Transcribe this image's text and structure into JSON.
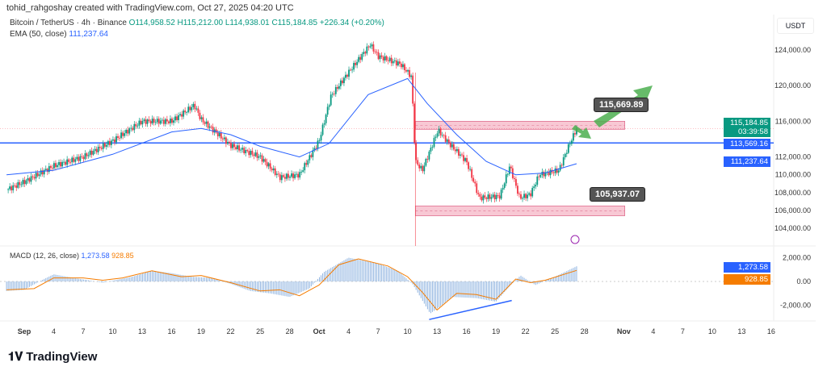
{
  "credit": "tohid_rahgoshay created with TradingView.com, Oct 27, 2025 04:20 UTC",
  "symbol": {
    "name": "Bitcoin / TetherUS · 4h · Binance",
    "o": "O114,958.52",
    "h": "H115,212.00",
    "l": "L114,938.01",
    "c": "C115,184.85",
    "chg": "+226.34 (+0.20%)"
  },
  "ema_legend": {
    "label": "EMA (50, close)",
    "value": "111,237.64"
  },
  "macd_legend": {
    "label": "MACD (12, 26, close)",
    "macd": "1,273.58",
    "signal": "928.85"
  },
  "currency": "USDT",
  "tags": {
    "price": "115,184.85",
    "countdown": "03:39:58",
    "hline": "113,569.16",
    "ema": "111,237.64",
    "macd": "1,273.58",
    "signal": "928.85"
  },
  "annotations": {
    "resistance": "115,669.89",
    "support": "105,937.07"
  },
  "logo": "TradingView",
  "colors": {
    "up": "#089981",
    "down": "#f23645",
    "ema": "#2962ff",
    "signal": "#f57c00",
    "hist": "#90b4e0",
    "zone": "#f8c8d4"
  },
  "chart_data": {
    "type": "candlestick",
    "title": "Bitcoin / TetherUS · 4h · Binance",
    "ylim": [
      103000,
      126000
    ],
    "yticks": [
      104000,
      106000,
      108000,
      110000,
      112000,
      116000,
      120000,
      124000
    ],
    "ytick_labels": [
      "104,000.00",
      "106,000.00",
      "108,000.00",
      "110,000.00",
      "112,000.00",
      "116,000.00",
      "120,000.00",
      "124,000.00"
    ],
    "xticks": [
      {
        "day": 0,
        "label": "Sep"
      },
      {
        "day": 3,
        "label": "4"
      },
      {
        "day": 6,
        "label": "7"
      },
      {
        "day": 9,
        "label": "10"
      },
      {
        "day": 12,
        "label": "13"
      },
      {
        "day": 15,
        "label": "16"
      },
      {
        "day": 18,
        "label": "19"
      },
      {
        "day": 21,
        "label": "22"
      },
      {
        "day": 24,
        "label": "25"
      },
      {
        "day": 27,
        "label": "28"
      },
      {
        "day": 30,
        "label": "Oct"
      },
      {
        "day": 33,
        "label": "4"
      },
      {
        "day": 36,
        "label": "7"
      },
      {
        "day": 39,
        "label": "10"
      },
      {
        "day": 42,
        "label": "13"
      },
      {
        "day": 45,
        "label": "16"
      },
      {
        "day": 48,
        "label": "19"
      },
      {
        "day": 51,
        "label": "22"
      },
      {
        "day": 54,
        "label": "25"
      },
      {
        "day": 57,
        "label": "28"
      },
      {
        "day": 61,
        "label": "Nov"
      },
      {
        "day": 64,
        "label": "4"
      },
      {
        "day": 67,
        "label": "7"
      },
      {
        "day": 70,
        "label": "10"
      },
      {
        "day": 73,
        "label": "13"
      },
      {
        "day": 76,
        "label": "16"
      }
    ],
    "price_path": [
      [
        -1.8,
        108300
      ],
      [
        0,
        109200
      ],
      [
        3,
        111000
      ],
      [
        6,
        112000
      ],
      [
        9,
        113800
      ],
      [
        12,
        116000
      ],
      [
        15,
        116000
      ],
      [
        17.3,
        117800
      ],
      [
        18,
        116200
      ],
      [
        21,
        113300
      ],
      [
        24,
        112000
      ],
      [
        26,
        109700
      ],
      [
        28,
        110000
      ],
      [
        30,
        113800
      ],
      [
        31.2,
        118800
      ],
      [
        33,
        121500
      ],
      [
        35.2,
        124600
      ],
      [
        36,
        123300
      ],
      [
        38.3,
        122400
      ],
      [
        39.4,
        121000
      ],
      [
        39.8,
        111500
      ],
      [
        40.5,
        110500
      ],
      [
        42.1,
        115000
      ],
      [
        43.4,
        113300
      ],
      [
        45,
        111500
      ],
      [
        46.3,
        107400
      ],
      [
        48.4,
        107600
      ],
      [
        49.4,
        111000
      ],
      [
        50.4,
        107400
      ],
      [
        51.5,
        107800
      ],
      [
        52.4,
        110000
      ],
      [
        54.4,
        110500
      ],
      [
        55.3,
        113000
      ],
      [
        56.2,
        115185
      ]
    ],
    "ema_path": [
      [
        -1.8,
        110000
      ],
      [
        3,
        110500
      ],
      [
        9,
        112300
      ],
      [
        15,
        114800
      ],
      [
        18,
        115200
      ],
      [
        21,
        114500
      ],
      [
        24,
        113200
      ],
      [
        28,
        112000
      ],
      [
        31,
        113500
      ],
      [
        35,
        119000
      ],
      [
        39,
        120800
      ],
      [
        41,
        118000
      ],
      [
        44,
        114500
      ],
      [
        47,
        111500
      ],
      [
        50,
        110000
      ],
      [
        53,
        110200
      ],
      [
        56.2,
        111237
      ]
    ],
    "horizontal_line": 113569.16,
    "zones": [
      {
        "from_day": 39.8,
        "to_day": 61.1,
        "low": 115100,
        "high": 116000,
        "label": "115,669.89"
      },
      {
        "from_day": 39.8,
        "to_day": 61.1,
        "low": 105400,
        "high": 106500,
        "label": "105,937.07"
      }
    ],
    "macd": {
      "ylim": [
        -3400,
        2700
      ],
      "yticks": [
        2000,
        0,
        -2000
      ],
      "ytick_labels": [
        "2,000.00",
        "0.00",
        "-2,000.00"
      ],
      "hist_path": [
        [
          -1.8,
          -800
        ],
        [
          0,
          -700
        ],
        [
          2,
          200
        ],
        [
          3,
          600
        ],
        [
          5,
          300
        ],
        [
          8,
          -100
        ],
        [
          11,
          400
        ],
        [
          13,
          900
        ],
        [
          15,
          700
        ],
        [
          17,
          400
        ],
        [
          19,
          300
        ],
        [
          21,
          -200
        ],
        [
          23,
          -800
        ],
        [
          25,
          -1000
        ],
        [
          27,
          -1300
        ],
        [
          29,
          -600
        ],
        [
          30.5,
          800
        ],
        [
          33,
          2000
        ],
        [
          36,
          1500
        ],
        [
          38,
          900
        ],
        [
          39.5,
          -200
        ],
        [
          41.3,
          -2700
        ],
        [
          42.5,
          -2000
        ],
        [
          43.5,
          -1300
        ],
        [
          46,
          -1400
        ],
        [
          48,
          -1700
        ],
        [
          49.5,
          -300
        ],
        [
          50.5,
          500
        ],
        [
          52,
          -300
        ],
        [
          54,
          400
        ],
        [
          56.2,
          1274
        ]
      ],
      "signal_path": [
        [
          -1.8,
          -700
        ],
        [
          1,
          -600
        ],
        [
          3,
          300
        ],
        [
          6,
          300
        ],
        [
          8,
          100
        ],
        [
          10,
          300
        ],
        [
          13,
          900
        ],
        [
          16,
          400
        ],
        [
          18,
          500
        ],
        [
          21,
          -100
        ],
        [
          24,
          -800
        ],
        [
          26,
          -700
        ],
        [
          28,
          -1200
        ],
        [
          30,
          -300
        ],
        [
          32,
          1400
        ],
        [
          34,
          1900
        ],
        [
          37,
          1300
        ],
        [
          39,
          400
        ],
        [
          40.5,
          -900
        ],
        [
          42,
          -2400
        ],
        [
          44,
          -1000
        ],
        [
          46,
          -1100
        ],
        [
          48,
          -1500
        ],
        [
          50,
          200
        ],
        [
          51.5,
          -100
        ],
        [
          53,
          100
        ],
        [
          56.2,
          929
        ]
      ],
      "trendline": [
        [
          41.2,
          -3200
        ],
        [
          49.6,
          -1600
        ]
      ]
    }
  }
}
